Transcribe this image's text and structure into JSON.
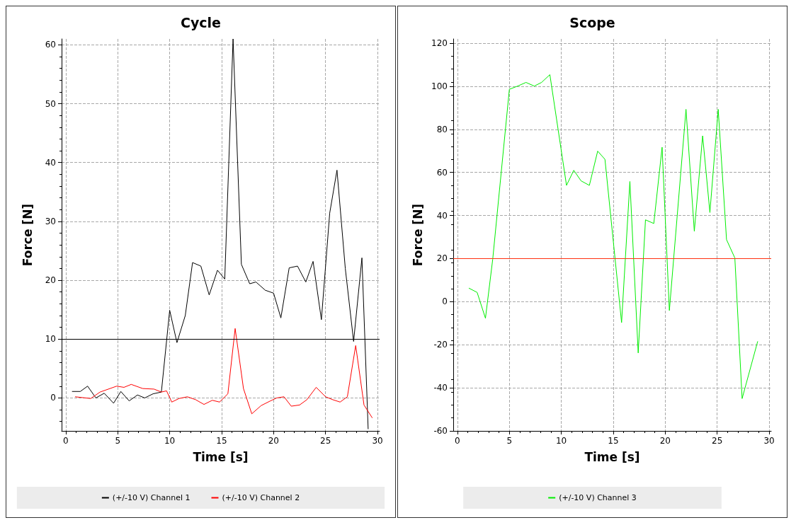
{
  "chart_data": [
    {
      "type": "line",
      "title": "Cycle",
      "xlabel": "Time [s]",
      "ylabel": "Force [N]",
      "xlim": [
        -0.4,
        30.2
      ],
      "xticks": [
        0,
        5,
        10,
        15,
        20,
        25,
        30
      ],
      "ylim": [
        -5.6,
        61
      ],
      "yticks": [
        0,
        10,
        20,
        30,
        40,
        50,
        60
      ],
      "grid": true,
      "legend": "bottom",
      "marker": "none",
      "line_style": "solid",
      "ref_lines": [
        {
          "axis": "y",
          "value": 10,
          "color": "#000000"
        }
      ],
      "series": [
        {
          "name": "(+/-10 V) Channel 1",
          "color": "#000000",
          "x": [
            0.6,
            1.4,
            2.1,
            2.9,
            3.7,
            4.6,
            5.3,
            6.1,
            6.9,
            7.6,
            8.4,
            9.2,
            10.0,
            10.7,
            11.5,
            12.2,
            13.0,
            13.8,
            14.6,
            15.3,
            16.1,
            16.9,
            17.7,
            18.3,
            19.2,
            20.0,
            20.7,
            21.5,
            22.3,
            23.1,
            23.8,
            24.6,
            25.4,
            26.1,
            26.9,
            27.7,
            28.5,
            29.1
          ],
          "values": [
            1.1,
            1.1,
            2.0,
            0,
            0.8,
            -0.9,
            1.1,
            -0.5,
            0.5,
            0,
            0.7,
            1.0,
            14.9,
            9.4,
            14.0,
            23.0,
            22.4,
            17.5,
            21.7,
            20.2,
            61,
            22.7,
            19.4,
            19.7,
            18.3,
            17.8,
            13.6,
            22.1,
            22.4,
            19.7,
            23.2,
            13.3,
            31.4,
            38.7,
            22.0,
            9.6,
            23.8,
            -5.3
          ]
        },
        {
          "name": "(+/-10 V) Channel 2",
          "color": "#ff0000",
          "x": [
            0.9,
            2.4,
            3.3,
            4.9,
            5.6,
            6.3,
            7.4,
            8.5,
            9.2,
            9.7,
            10.2,
            10.9,
            11.7,
            12.5,
            13.3,
            14.1,
            14.8,
            15.6,
            16.3,
            17.1,
            17.9,
            18.8,
            19.7,
            20.3,
            21.0,
            21.7,
            22.5,
            23.2,
            24.1,
            25.0,
            25.7,
            26.4,
            27.1,
            27.9,
            28.7,
            29.5
          ],
          "values": [
            0.2,
            -0.1,
            1.0,
            2.0,
            1.8,
            2.3,
            1.6,
            1.5,
            1.0,
            1.2,
            -0.7,
            -0.1,
            0.2,
            -0.3,
            -1.1,
            -0.4,
            -0.7,
            0.7,
            11.8,
            1.6,
            -2.7,
            -1.3,
            -0.5,
            0,
            0.2,
            -1.4,
            -1.2,
            -0.3,
            1.8,
            0.2,
            -0.3,
            -0.7,
            0.2,
            8.9,
            -1.2,
            -3.4
          ]
        }
      ]
    },
    {
      "type": "line",
      "title": "Scope",
      "xlabel": "Time [s]",
      "ylabel": "Force [N]",
      "xlim": [
        -0.4,
        30.2
      ],
      "xticks": [
        0,
        5,
        10,
        15,
        20,
        25,
        30
      ],
      "ylim": [
        -60,
        122
      ],
      "yticks": [
        -60,
        -40,
        -20,
        0,
        20,
        40,
        60,
        80,
        100,
        120
      ],
      "grid": true,
      "legend": "bottom",
      "marker": "none",
      "line_style": "solid",
      "ref_lines": [
        {
          "axis": "y",
          "value": 20,
          "color": "#ff3010"
        }
      ],
      "series": [
        {
          "name": "(+/-10 V) Channel 3",
          "color": "#00ee00",
          "x": [
            1.1,
            1.9,
            2.7,
            3.4,
            5.0,
            5.8,
            6.6,
            7.4,
            8.1,
            8.9,
            10.5,
            11.2,
            11.9,
            12.7,
            13.5,
            14.2,
            15.8,
            16.6,
            17.4,
            18.1,
            18.9,
            19.7,
            20.4,
            22.0,
            22.8,
            23.6,
            24.3,
            25.1,
            25.9,
            26.7,
            27.4,
            28.9
          ],
          "values": [
            6.3,
            4.3,
            -7.7,
            19.7,
            98.6,
            100.1,
            101.8,
            100.1,
            101.8,
            105.4,
            54.0,
            61.0,
            56.1,
            54.0,
            69.9,
            66.1,
            -9.7,
            55.8,
            -23.8,
            38.0,
            36.3,
            71.7,
            -4.1,
            89.3,
            32.7,
            77.0,
            41.4,
            89.3,
            28.8,
            20.3,
            -45.0,
            -18.4
          ]
        }
      ]
    }
  ]
}
